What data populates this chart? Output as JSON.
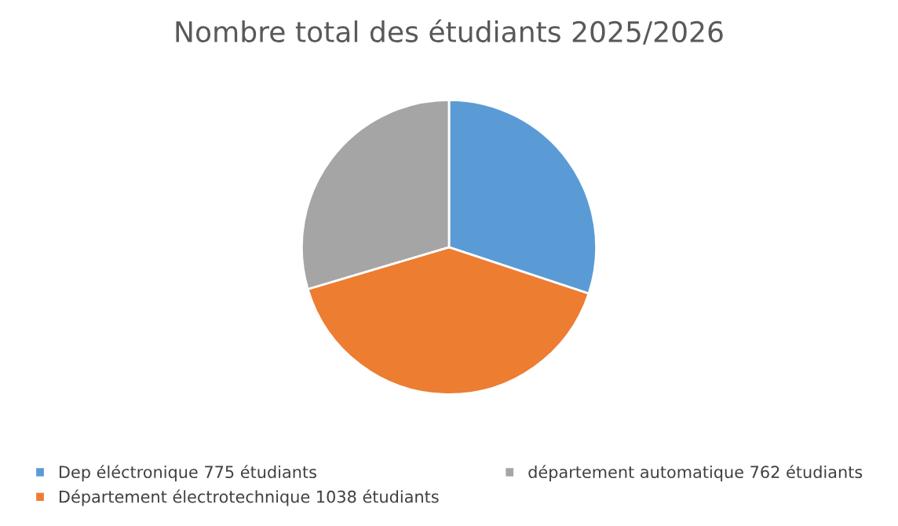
{
  "chart_data": {
    "type": "pie",
    "title": "Nombre total des étudiants 2025/2026",
    "categories": [
      "Dep éléctronique 775 étudiants",
      "Département électrotechnique 1038 étudiants",
      "département automatique 762 étudiants"
    ],
    "values": [
      775,
      1038,
      762
    ],
    "colors": [
      "#5b9bd5",
      "#ed7d31",
      "#a5a5a5"
    ],
    "legend": "bottom"
  }
}
